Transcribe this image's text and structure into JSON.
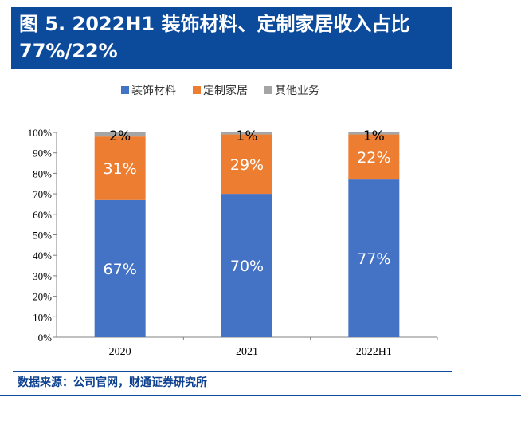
{
  "figure": {
    "title": "图 5. 2022H1  装饰材料、定制家居收入占比77%/22%"
  },
  "source": "数据来源：公司官网，财通证券研究所",
  "chart_data": {
    "type": "bar",
    "stacked": true,
    "categories": [
      "2020",
      "2021",
      "2022H1"
    ],
    "series": [
      {
        "name": "装饰材料",
        "color": "#4472c4",
        "values": [
          67,
          70,
          77
        ],
        "labels": [
          "67%",
          "70%",
          "77%"
        ]
      },
      {
        "name": "定制家居",
        "color": "#ed7d31",
        "values": [
          31,
          29,
          22
        ],
        "labels": [
          "31%",
          "29%",
          "22%"
        ]
      },
      {
        "name": "其他业务",
        "color": "#a5a5a5",
        "values": [
          2,
          1,
          1
        ],
        "labels": [
          "2%",
          "1%",
          "1%"
        ]
      }
    ],
    "ylim": [
      0,
      100
    ],
    "y_ticks": [
      "0%",
      "10%",
      "20%",
      "30%",
      "40%",
      "50%",
      "60%",
      "70%",
      "80%",
      "90%",
      "100%"
    ],
    "legend_position": "top-center",
    "grid": false
  }
}
